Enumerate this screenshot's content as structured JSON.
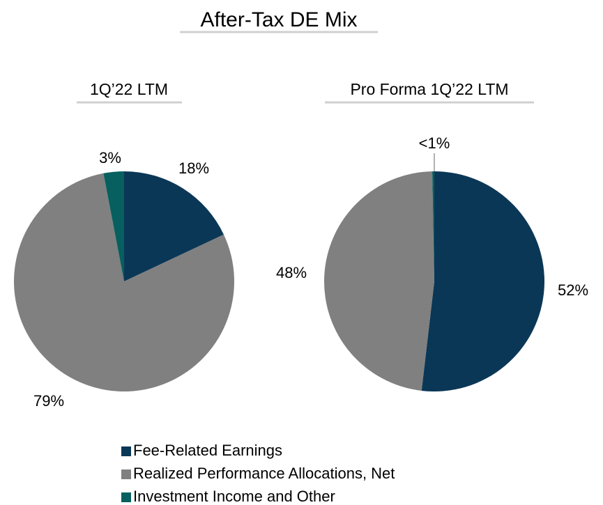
{
  "title": "After-Tax DE Mix",
  "chart_data": [
    {
      "type": "pie",
      "subtitle": "1Q’22 LTM",
      "categories": [
        "Fee-Related Earnings",
        "Realized Performance Allocations, Net",
        "Investment Income and Other"
      ],
      "colors": [
        "#0b3757",
        "#808080",
        "#075f5f"
      ],
      "values": [
        18,
        79,
        3
      ],
      "value_labels": [
        "18%",
        "79%",
        "3%"
      ]
    },
    {
      "type": "pie",
      "subtitle": "Pro Forma 1Q’22 LTM",
      "categories": [
        "Fee-Related Earnings",
        "Realized Performance Allocations, Net",
        "Investment Income and Other"
      ],
      "colors": [
        "#0b3757",
        "#808080",
        "#075f5f"
      ],
      "values": [
        52,
        48,
        0.3
      ],
      "value_labels": [
        "52%",
        "48%",
        "<1%"
      ]
    }
  ]
}
